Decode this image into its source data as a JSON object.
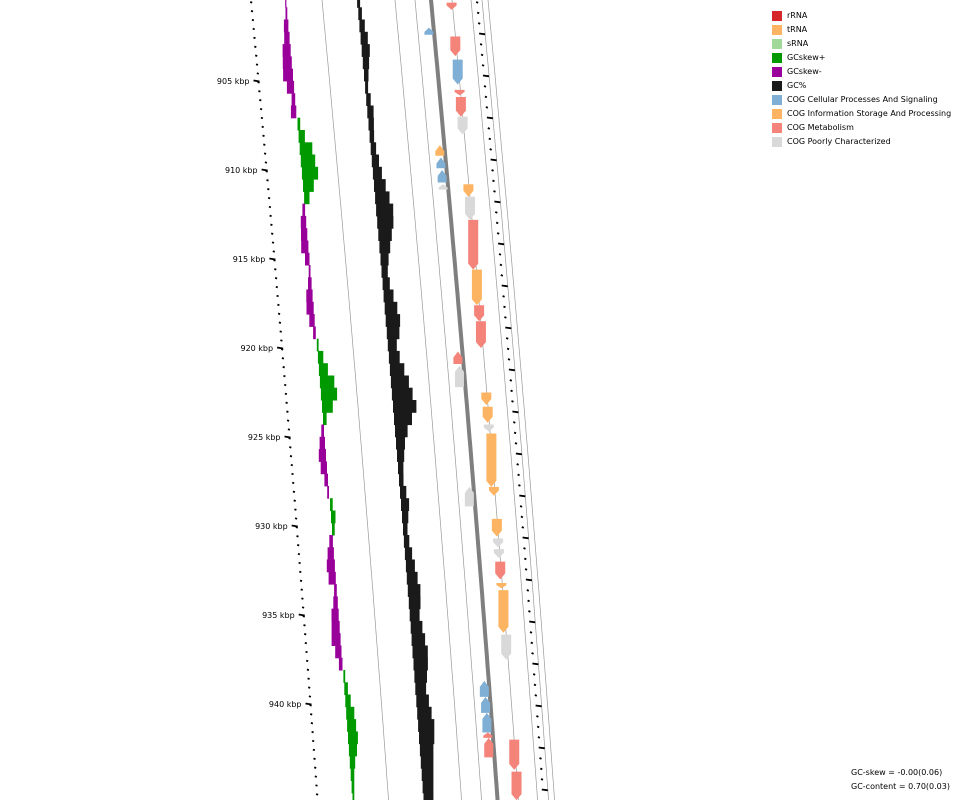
{
  "legend": {
    "items": [
      {
        "label": "rRNA",
        "color": "#d62728"
      },
      {
        "label": "tRNA",
        "color": "#fdb462"
      },
      {
        "label": "sRNA",
        "color": "#a1d99b"
      },
      {
        "label": "GCskew+",
        "color": "#009900"
      },
      {
        "label": "GCskew-",
        "color": "#990099"
      },
      {
        "label": "GC%",
        "color": "#1a1a1a"
      },
      {
        "label": "COG Cellular Processes And Signaling",
        "color": "#7fafd5"
      },
      {
        "label": "COG Information Storage And Processing",
        "color": "#fdb462"
      },
      {
        "label": "COG Metabolism",
        "color": "#f4837a"
      },
      {
        "label": "COG Poorly Characterized",
        "color": "#d9d9d9"
      }
    ]
  },
  "stats": {
    "gc_skew": "GC-skew = -0.00(0.06)",
    "gc_content": "GC-content = 0.70(0.03)"
  },
  "ticks": [
    {
      "kbp": 905,
      "label": "905 kbp"
    },
    {
      "kbp": 910,
      "label": "910 kbp"
    },
    {
      "kbp": 915,
      "label": "915 kbp"
    },
    {
      "kbp": 920,
      "label": "920 kbp"
    },
    {
      "kbp": 925,
      "label": "925 kbp"
    },
    {
      "kbp": 930,
      "label": "930 kbp"
    },
    {
      "kbp": 935,
      "label": "935 kbp"
    },
    {
      "kbp": 940,
      "label": "940 kbp"
    }
  ],
  "skew_profile": [
    -0.1,
    -0.2,
    -0.5,
    -0.6,
    -0.9,
    -1.0,
    -1.1,
    -0.8,
    -0.4,
    -0.6,
    0.3,
    0.7,
    1.4,
    1.6,
    1.8,
    1.2,
    0.6,
    -0.3,
    -0.6,
    -0.7,
    -0.8,
    -0.5,
    -0.2,
    -0.4,
    -0.7,
    -0.8,
    -0.6,
    -0.3,
    0.2,
    0.6,
    1.0,
    1.6,
    1.8,
    1.2,
    0.4,
    -0.3,
    -0.6,
    -0.8,
    -0.7,
    -0.4,
    -0.2,
    0.3,
    0.5,
    0.3,
    -0.4,
    -0.7,
    -0.9,
    -0.8,
    -0.3,
    -0.5,
    -0.8,
    -0.9,
    -1.0,
    -0.7,
    -0.4,
    0.2,
    0.4,
    0.6,
    0.9,
    1.0,
    1.1,
    0.9,
    0.6,
    0.4,
    0.3,
    0.2
  ],
  "gc_profile": [
    0.2,
    0.4,
    0.6,
    0.8,
    0.9,
    0.7,
    0.5,
    0.3,
    0.5,
    0.7,
    0.6,
    0.5,
    0.6,
    0.8,
    1.0,
    1.3,
    1.6,
    1.9,
    1.8,
    1.5,
    1.2,
    0.9,
    0.7,
    0.8,
    1.1,
    1.4,
    1.6,
    1.4,
    1.0,
    1.2,
    1.6,
    2.0,
    2.3,
    2.6,
    2.0,
    1.4,
    1.0,
    0.8,
    0.6,
    0.5,
    0.7,
    0.9,
    0.7,
    0.5,
    0.6,
    0.8,
    1.0,
    1.2,
    1.4,
    1.3,
    1.1,
    1.3,
    1.5,
    1.7,
    1.6,
    1.4,
    1.2,
    1.4,
    1.6,
    1.8,
    1.7,
    1.5,
    1.4,
    1.3,
    1.2,
    1.1
  ],
  "genes_forward": [
    {
      "start": 900.6,
      "end": 901.0,
      "cog": "COG Metabolism",
      "dir": "+"
    },
    {
      "start": 902.5,
      "end": 903.6,
      "cog": "COG Metabolism",
      "dir": "+"
    },
    {
      "start": 903.8,
      "end": 905.2,
      "cog": "COG Cellular Processes And Signaling",
      "dir": "+"
    },
    {
      "start": 905.5,
      "end": 905.8,
      "cog": "COG Metabolism",
      "dir": "+"
    },
    {
      "start": 905.9,
      "end": 907.0,
      "cog": "COG Metabolism",
      "dir": "+"
    },
    {
      "start": 907.0,
      "end": 908.0,
      "cog": "COG Poorly Characterized",
      "dir": "+"
    },
    {
      "start": 910.8,
      "end": 911.5,
      "cog": "COG Information Storage And Processing",
      "dir": "+"
    },
    {
      "start": 911.5,
      "end": 912.8,
      "cog": "COG Poorly Characterized",
      "dir": "+"
    },
    {
      "start": 912.8,
      "end": 915.6,
      "cog": "COG Metabolism",
      "dir": "+"
    },
    {
      "start": 915.6,
      "end": 917.6,
      "cog": "COG Information Storage And Processing",
      "dir": "+"
    },
    {
      "start": 917.6,
      "end": 918.5,
      "cog": "COG Metabolism",
      "dir": "+"
    },
    {
      "start": 918.5,
      "end": 920.0,
      "cog": "COG Metabolism",
      "dir": "+"
    },
    {
      "start": 922.5,
      "end": 923.2,
      "cog": "COG Information Storage And Processing",
      "dir": "+"
    },
    {
      "start": 923.3,
      "end": 924.2,
      "cog": "COG Information Storage And Processing",
      "dir": "+"
    },
    {
      "start": 924.3,
      "end": 924.7,
      "cog": "COG Poorly Characterized",
      "dir": "+"
    },
    {
      "start": 924.8,
      "end": 927.8,
      "cog": "COG Information Storage And Processing",
      "dir": "+"
    },
    {
      "start": 927.8,
      "end": 928.3,
      "cog": "COG Information Storage And Processing",
      "dir": "+"
    },
    {
      "start": 929.6,
      "end": 930.6,
      "cog": "COG Information Storage And Processing",
      "dir": "+"
    },
    {
      "start": 930.7,
      "end": 931.2,
      "cog": "COG Poorly Characterized",
      "dir": "+"
    },
    {
      "start": 931.3,
      "end": 931.8,
      "cog": "COG Poorly Characterized",
      "dir": "+"
    },
    {
      "start": 932.0,
      "end": 933.0,
      "cog": "COG Metabolism",
      "dir": "+"
    },
    {
      "start": 933.2,
      "end": 933.5,
      "cog": "COG Information Storage And Processing",
      "dir": "+"
    },
    {
      "start": 933.6,
      "end": 936.0,
      "cog": "COG Information Storage And Processing",
      "dir": "+"
    },
    {
      "start": 936.1,
      "end": 937.5,
      "cog": "COG Poorly Characterized",
      "dir": "+"
    },
    {
      "start": 942.0,
      "end": 943.7,
      "cog": "COG Metabolism",
      "dir": "+"
    },
    {
      "start": 943.8,
      "end": 945.4,
      "cog": "COG Metabolism",
      "dir": "+"
    }
  ],
  "genes_reverse": [
    {
      "start": 902.0,
      "end": 902.4,
      "cog": "COG Cellular Processes And Signaling",
      "dir": "-"
    },
    {
      "start": 908.6,
      "end": 909.2,
      "cog": "COG Information Storage And Processing",
      "dir": "-"
    },
    {
      "start": 909.3,
      "end": 909.9,
      "cog": "COG Cellular Processes And Signaling",
      "dir": "-"
    },
    {
      "start": 910.0,
      "end": 910.7,
      "cog": "COG Cellular Processes And Signaling",
      "dir": "-"
    },
    {
      "start": 910.8,
      "end": 911.1,
      "cog": "COG Poorly Characterized",
      "dir": "-"
    },
    {
      "start": 920.2,
      "end": 920.9,
      "cog": "COG Metabolism",
      "dir": "-"
    },
    {
      "start": 921.0,
      "end": 922.2,
      "cog": "COG Poorly Characterized",
      "dir": "-"
    },
    {
      "start": 927.8,
      "end": 928.9,
      "cog": "COG Poorly Characterized",
      "dir": "-"
    },
    {
      "start": 938.7,
      "end": 939.6,
      "cog": "COG Cellular Processes And Signaling",
      "dir": "-"
    },
    {
      "start": 939.6,
      "end": 940.5,
      "cog": "COG Cellular Processes And Signaling",
      "dir": "-"
    },
    {
      "start": 940.5,
      "end": 941.6,
      "cog": "COG Cellular Processes And Signaling",
      "dir": "-"
    },
    {
      "start": 941.6,
      "end": 941.9,
      "cog": "COG Metabolism",
      "dir": "-"
    },
    {
      "start": 941.9,
      "end": 943.0,
      "cog": "COG Metabolism",
      "dir": "-"
    }
  ]
}
